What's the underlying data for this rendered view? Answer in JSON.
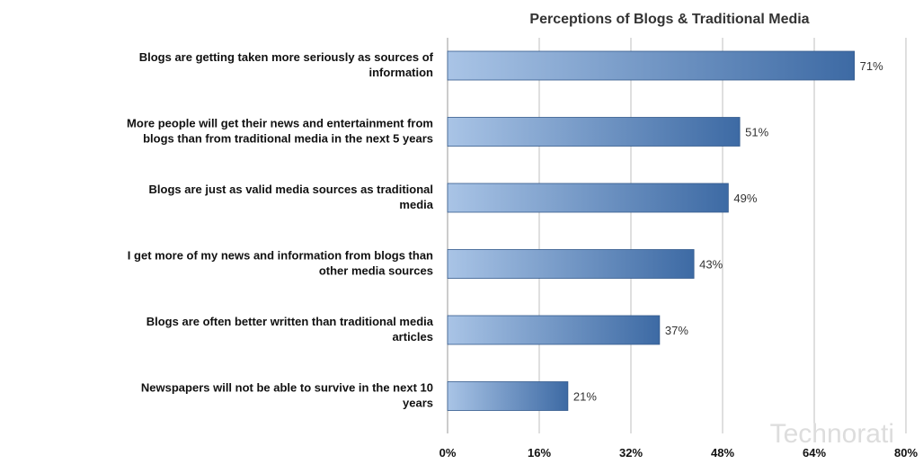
{
  "chart_data": {
    "type": "bar",
    "orientation": "horizontal",
    "title": "Perceptions of Blogs & Traditional Media",
    "categories": [
      [
        "Blogs are getting taken more seriously as sources of",
        "information"
      ],
      [
        "More people will get their news and entertainment from",
        "blogs than from traditional media in the next 5 years"
      ],
      [
        "Blogs are just as valid media sources as traditional",
        "media"
      ],
      [
        "I get more of my news and information from blogs than",
        "other media sources"
      ],
      [
        "Blogs are often better written than traditional media",
        "articles"
      ],
      [
        "Newspapers will not be able to survive in the next 10",
        "years"
      ]
    ],
    "values": [
      71,
      51,
      49,
      43,
      37,
      21
    ],
    "data_labels": [
      "71%",
      "51%",
      "49%",
      "43%",
      "37%",
      "21%"
    ],
    "xlim": [
      0,
      80
    ],
    "xticks": [
      0,
      16,
      32,
      48,
      64,
      80
    ],
    "xtick_labels": [
      "0%",
      "16%",
      "32%",
      "48%",
      "64%",
      "80%"
    ],
    "grid": "vertical",
    "legend": "none",
    "watermark": "Technorati",
    "colors": {
      "bar_start": "#a9c4e6",
      "bar_end": "#3d6aa4",
      "bar_stroke": "#345a8c",
      "grid": "#bfbfbf"
    }
  }
}
